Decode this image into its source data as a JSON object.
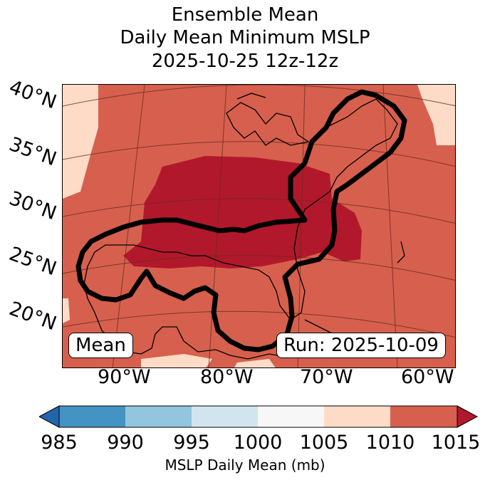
{
  "title": {
    "line1": "Ensemble Mean",
    "line2": "Daily Mean Minimum MSLP",
    "line3": "2025-10-25 12z-12z"
  },
  "map": {
    "lat_labels": [
      "40°N",
      "35°N",
      "30°N",
      "25°N",
      "20°N"
    ],
    "lon_labels": [
      "90°W",
      "80°W",
      "70°W",
      "60°W"
    ],
    "mean_box": "Mean",
    "run_box": "Run: 2025-10-09",
    "fill_colors": {
      "low": "#b2182b",
      "mid": "#d6604d",
      "high": "#fddbc7",
      "outline": "#000000"
    }
  },
  "colorbar": {
    "ticks": [
      "985",
      "990",
      "995",
      "1000",
      "1005",
      "1010",
      "1015"
    ],
    "colors": [
      "#2166ac",
      "#4393c3",
      "#92c5de",
      "#d1e5f0",
      "#f7f7f7",
      "#fddbc7",
      "#d6604d",
      "#b2182b"
    ],
    "label": "MSLP Daily Mean (mb)"
  }
}
